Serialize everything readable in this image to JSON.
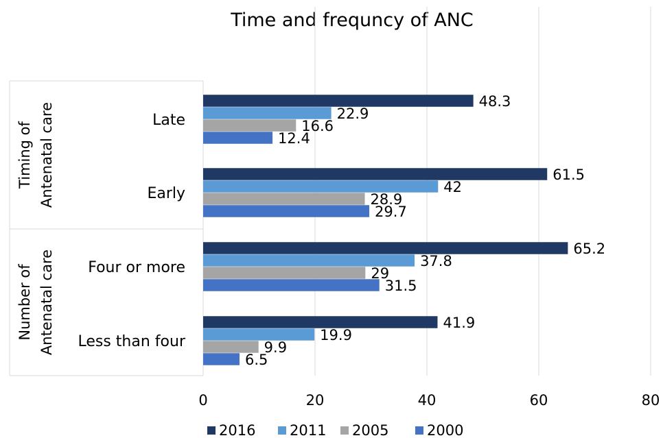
{
  "chart_data": {
    "type": "bar",
    "orientation": "horizontal",
    "title": "Time and  frequncy of ANC",
    "groups": [
      {
        "label": "Timing of Antenatal care",
        "categories": [
          "Late",
          "Early"
        ]
      },
      {
        "label": "Number of Antenatal care",
        "categories": [
          "Four or more",
          "Less than four"
        ]
      }
    ],
    "categories": [
      "Late",
      "Early",
      "Four or more",
      "Less than four"
    ],
    "series": [
      {
        "name": "2016",
        "color": "#203864",
        "values": [
          48.3,
          61.5,
          65.2,
          41.9
        ]
      },
      {
        "name": "2011",
        "color": "#5b9bd5",
        "values": [
          22.9,
          42,
          37.8,
          19.9
        ]
      },
      {
        "name": "2005",
        "color": "#a5a5a5",
        "values": [
          16.6,
          28.9,
          29,
          9.9
        ]
      },
      {
        "name": "2000",
        "color": "#4472c4",
        "values": [
          12.4,
          29.7,
          31.5,
          6.5
        ]
      }
    ],
    "xlim": [
      0,
      80
    ],
    "xticks": [
      0,
      20,
      40,
      60,
      80
    ],
    "grid": true,
    "legend": "bottom"
  }
}
